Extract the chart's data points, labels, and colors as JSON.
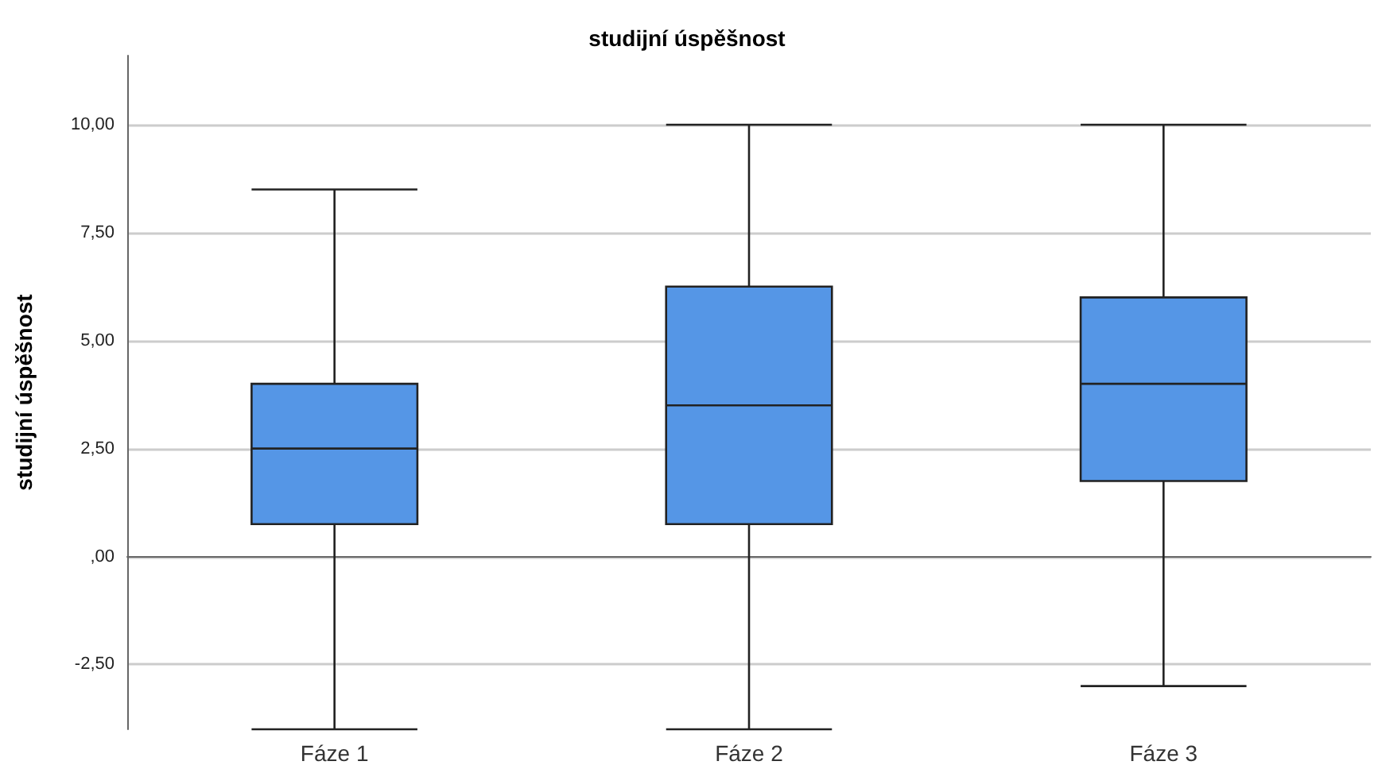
{
  "chart_data": {
    "type": "box",
    "title": "studijní úspěšnost",
    "ylabel": "studijní úspěšnost",
    "categories": [
      "Fáze 1",
      "Fáze 2",
      "Fáze 3"
    ],
    "series": [
      {
        "color": "#5596e6",
        "boxes": [
          {
            "low": -4,
            "q1": 0.75,
            "median": 2.5,
            "q3": 4,
            "high": 8.5
          },
          {
            "low": -4,
            "q1": 0.75,
            "median": 3.5,
            "q3": 6.25,
            "high": 10
          },
          {
            "low": -3,
            "q1": 1.75,
            "median": 4,
            "q3": 6,
            "high": 10
          }
        ]
      }
    ],
    "ylim": [
      -4,
      11.6
    ],
    "yticks": [
      {
        "value": -2.5,
        "label": "-2,50"
      },
      {
        "value": 0,
        "label": ",00"
      },
      {
        "value": 2.5,
        "label": "2,50"
      },
      {
        "value": 5,
        "label": "5,00"
      },
      {
        "value": 7.5,
        "label": "7,50"
      },
      {
        "value": 10,
        "label": "10,00"
      }
    ],
    "grid": "y"
  }
}
